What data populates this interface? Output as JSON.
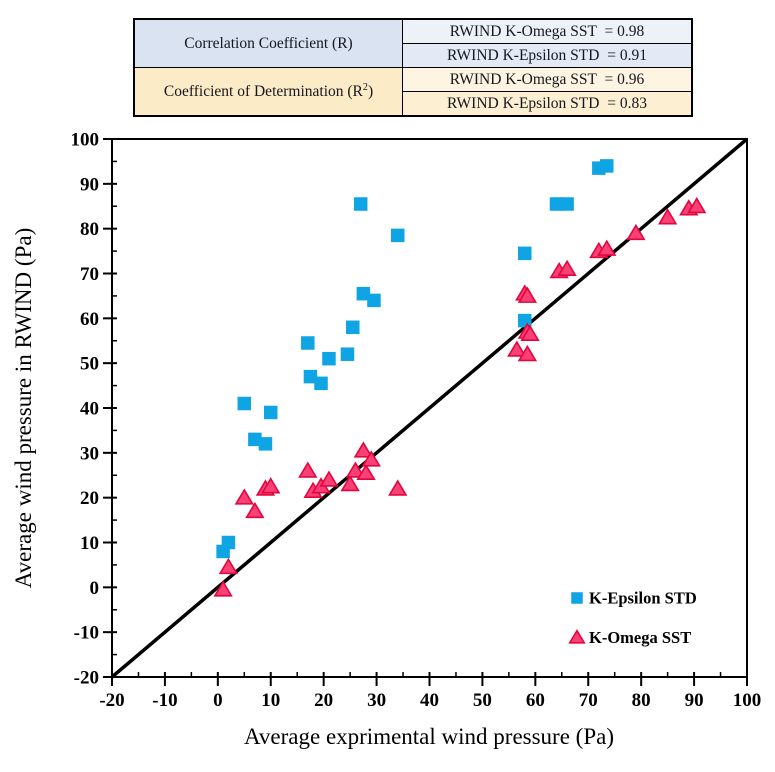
{
  "stats_table": {
    "row_correlation": {
      "label": "Correlation Coefficient (R)",
      "value_omega": "RWIND K-Omega SST  = 0.98",
      "value_epsilon": "RWIND K-Epsilon STD  = 0.91"
    },
    "row_determination": {
      "label_prefix": "Coefficient of Determination (R",
      "label_sup": "2",
      "label_suffix": ")",
      "value_omega": "RWIND K-Omega SST  = 0.96",
      "value_epsilon": "RWIND K-Epsilon STD  = 0.83"
    }
  },
  "colors": {
    "epsilon_blue": "#0fa4e4",
    "omega_pink_fill": "#fb4077",
    "omega_red_stroke": "#e2063c",
    "identity_line": "#000000",
    "table_blue_left": "#d9e3f1",
    "table_blue_value_top": "#edf2f9",
    "table_blue_value_bottom": "#e3eaf5",
    "table_yellow_left": "#fcebc7",
    "table_yellow_value_top": "#fdf5e1",
    "table_yellow_value_bottom": "#fdefd2"
  },
  "chart_data": {
    "type": "scatter",
    "title": "",
    "xlabel": "Average exprimental wind pressure (Pa)",
    "ylabel": "Average wind pressure in RWIND (Pa)",
    "xlim": [
      -20,
      100
    ],
    "ylim": [
      -20,
      100
    ],
    "xticks": [
      -20,
      -10,
      0,
      10,
      20,
      30,
      40,
      50,
      60,
      70,
      80,
      90,
      100
    ],
    "yticks": [
      -20,
      -10,
      0,
      10,
      20,
      30,
      40,
      50,
      60,
      70,
      80,
      90,
      100
    ],
    "minor_tick_step": 5,
    "grid": false,
    "legend_position": "inside-lower-right",
    "identity_line": {
      "x": [
        -20,
        100
      ],
      "y": [
        -20,
        100
      ],
      "color": "#000000",
      "width": 3.5
    },
    "series": [
      {
        "name": "K-Epsilon STD",
        "marker": "square",
        "fill": "#0fa4e4",
        "stroke": "none",
        "points": [
          [
            1,
            8
          ],
          [
            2,
            10
          ],
          [
            5,
            41
          ],
          [
            7,
            33
          ],
          [
            9,
            32
          ],
          [
            10,
            39
          ],
          [
            17,
            54.5
          ],
          [
            17.5,
            47
          ],
          [
            19.5,
            45.5
          ],
          [
            21,
            51
          ],
          [
            24.5,
            52
          ],
          [
            25.5,
            58
          ],
          [
            27,
            85.5
          ],
          [
            27.5,
            65.5
          ],
          [
            29.5,
            64
          ],
          [
            34,
            78.5
          ],
          [
            58,
            59.5
          ],
          [
            58,
            74.5
          ],
          [
            64,
            85.5
          ],
          [
            66,
            85.5
          ],
          [
            72,
            93.5
          ],
          [
            73.5,
            94
          ]
        ]
      },
      {
        "name": "K-Omega SST",
        "marker": "triangle",
        "fill": "#fb4077",
        "stroke": "#e2063c",
        "points": [
          [
            1,
            -0.5
          ],
          [
            2,
            4.5
          ],
          [
            5,
            20
          ],
          [
            7,
            17
          ],
          [
            9,
            22
          ],
          [
            10,
            22.5
          ],
          [
            17,
            26
          ],
          [
            18,
            21.5
          ],
          [
            19.5,
            22.5
          ],
          [
            21,
            24
          ],
          [
            25,
            23
          ],
          [
            26,
            26
          ],
          [
            27.5,
            30.5
          ],
          [
            28,
            25.5
          ],
          [
            29,
            28.5
          ],
          [
            34,
            22
          ],
          [
            56.5,
            53
          ],
          [
            58,
            65.5
          ],
          [
            58.5,
            65
          ],
          [
            58.5,
            52
          ],
          [
            58.5,
            57
          ],
          [
            59,
            56.5
          ],
          [
            64.5,
            70.5
          ],
          [
            66,
            71
          ],
          [
            72,
            75
          ],
          [
            73.5,
            75.5
          ],
          [
            79,
            79
          ],
          [
            85,
            82.5
          ],
          [
            89,
            84.5
          ],
          [
            90.5,
            85
          ]
        ]
      }
    ]
  }
}
